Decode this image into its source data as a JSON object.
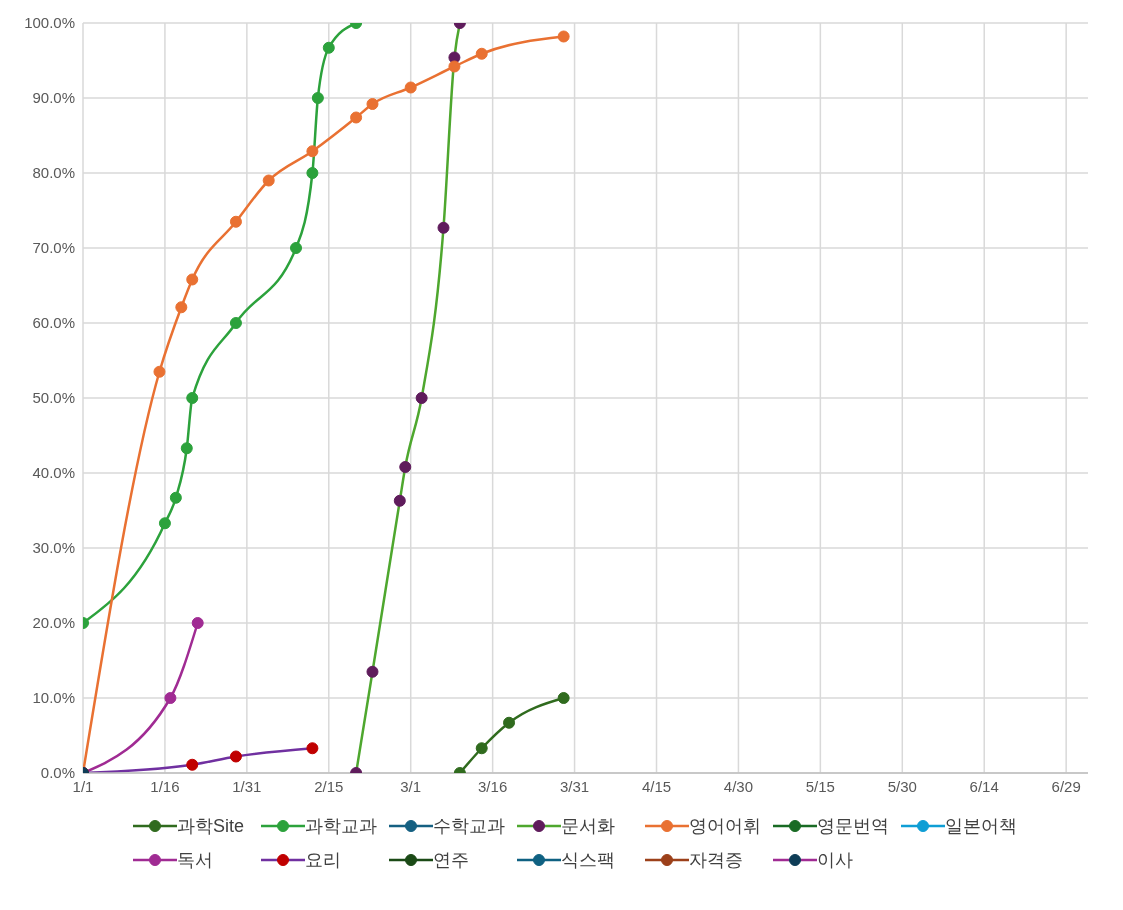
{
  "chart_data": {
    "type": "line",
    "marker": "circle",
    "grid": true,
    "legend": "bottom",
    "line_style": "solid",
    "xlim": [
      "--01-01",
      "--07-03"
    ],
    "xticks": [
      {
        "value": "--01-01",
        "label": "1/1"
      },
      {
        "value": "--01-16",
        "label": "1/16"
      },
      {
        "value": "--01-31",
        "label": "1/31"
      },
      {
        "value": "--02-15",
        "label": "2/15"
      },
      {
        "value": "--03-01",
        "label": "3/1"
      },
      {
        "value": "--03-16",
        "label": "3/16"
      },
      {
        "value": "--03-31",
        "label": "3/31"
      },
      {
        "value": "--04-15",
        "label": "4/15"
      },
      {
        "value": "--04-30",
        "label": "4/30"
      },
      {
        "value": "--05-15",
        "label": "5/15"
      },
      {
        "value": "--05-30",
        "label": "5/30"
      },
      {
        "value": "--06-14",
        "label": "6/14"
      },
      {
        "value": "--06-29",
        "label": "6/29"
      }
    ],
    "ylim": [
      0,
      100
    ],
    "yticks": [
      {
        "value": 0,
        "label": "0.0%"
      },
      {
        "value": 10,
        "label": "10.0%"
      },
      {
        "value": 20,
        "label": "20.0%"
      },
      {
        "value": 30,
        "label": "30.0%"
      },
      {
        "value": 40,
        "label": "40.0%"
      },
      {
        "value": 50,
        "label": "50.0%"
      },
      {
        "value": 60,
        "label": "60.0%"
      },
      {
        "value": 70,
        "label": "70.0%"
      },
      {
        "value": 80,
        "label": "80.0%"
      },
      {
        "value": 90,
        "label": "90.0%"
      },
      {
        "value": 100,
        "label": "100.0%"
      }
    ],
    "series": [
      {
        "name": "과학Site",
        "color": "#306b1e",
        "colors": [
          "#306b1e",
          "#306b1e",
          "#306b1e",
          "#306b1e"
        ],
        "x": [
          "--03-10",
          "--03-14",
          "--03-19",
          "--03-29"
        ],
        "values": [
          0,
          3.3,
          6.7,
          10
        ]
      },
      {
        "name": "과학교과",
        "color": "#2ca23c",
        "colors": [
          "#2ca23c",
          "#2ca23c",
          "#2ca23c",
          "#2ca23c",
          "#2ca23c",
          "#2ca23c",
          "#2ca23c",
          "#2ca23c",
          "#2ca23c",
          "#2ca23c",
          "#2ca23c"
        ],
        "x": [
          "--01-01",
          "--01-16",
          "--01-18",
          "--01-20",
          "--01-21",
          "--01-29",
          "--02-09",
          "--02-12",
          "--02-13",
          "--02-15",
          "--02-20"
        ],
        "values": [
          20,
          33.3,
          36.7,
          43.3,
          50,
          60,
          70,
          80,
          90,
          96.7,
          100
        ]
      },
      {
        "name": "수학교과",
        "color": "#156082"
      },
      {
        "name": "문서화",
        "color": "#4ea72e",
        "colors": [
          "#5f1c5c",
          "#5f1c5c",
          "#5f1c5c",
          "#5f1c5c",
          "#5f1c5c",
          "#5f1c5c",
          "#5f1c5c",
          "#5f1c5c"
        ],
        "x": [
          "--02-20",
          "--02-23",
          "--02-28",
          "--02-29",
          "--03-03",
          "--03-07",
          "--03-09",
          "--03-10"
        ],
        "values": [
          0,
          13.5,
          36.3,
          40.8,
          50,
          72.7,
          95.4,
          100
        ]
      },
      {
        "name": "영어어휘",
        "color": "#e97132",
        "colors": [
          "#e97132",
          "#e97132",
          "#e97132",
          "#e97132",
          "#e97132",
          "#e97132",
          "#e97132",
          "#e97132",
          "#e97132",
          "#e97132",
          "#e97132",
          "#e97132",
          "#e97132"
        ],
        "x": [
          "--01-01",
          "--01-15",
          "--01-19",
          "--01-21",
          "--01-29",
          "--02-04",
          "--02-12",
          "--02-20",
          "--02-23",
          "--03-01",
          "--03-09",
          "--03-14",
          "--03-29"
        ],
        "values": [
          0,
          53.5,
          62.1,
          65.8,
          73.5,
          79,
          82.9,
          87.4,
          89.2,
          91.4,
          94.2,
          95.9,
          98.2
        ]
      },
      {
        "name": "영문번역",
        "color": "#196b24"
      },
      {
        "name": "일본어책",
        "color": "#0f9ed5"
      },
      {
        "name": "독서",
        "color": "#a02b93",
        "colors": [
          "#a02b93",
          "#a02b93",
          "#a02b93"
        ],
        "x": [
          "--01-01",
          "--01-17",
          "--01-22"
        ],
        "values": [
          0,
          10,
          20
        ]
      },
      {
        "name": "요리",
        "color": "#7030a0",
        "colors": [
          "#c00000",
          "#c00000",
          "#c00000",
          "#c00000"
        ],
        "x": [
          "--01-01",
          "--01-21",
          "--01-29",
          "--02-12"
        ],
        "values": [
          0,
          1.1,
          2.2,
          3.3
        ]
      },
      {
        "name": "연주",
        "color": "#1b4a16"
      },
      {
        "name": "식스팩",
        "color": "#0f6182"
      },
      {
        "name": "자격증",
        "color": "#9c401a"
      },
      {
        "name": "이사",
        "color": "#a02b93",
        "colors": [
          "#0e3d57"
        ],
        "x": [
          "--01-01"
        ],
        "values": [
          0
        ]
      }
    ]
  }
}
